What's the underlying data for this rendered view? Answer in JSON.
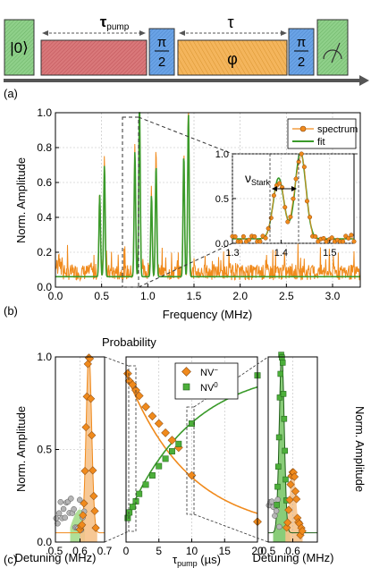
{
  "figure": {
    "panel_labels": {
      "a": "(a)",
      "b": "(b)",
      "c": "(c)"
    },
    "sequence": {
      "state_label": "|0⟩",
      "tau_pump_label": "τ",
      "tau_pump_sub": "pump",
      "pi2_label_top": "π",
      "pi2_label_bottom": "2",
      "tau_label": "τ",
      "phase_label": "φ",
      "colors": {
        "green": "#8fd08a",
        "red": "#d9787a",
        "blue": "#6aa3e6",
        "orange": "#f4b55c",
        "arrow": "#555555"
      }
    },
    "colors": {
      "orange": "#f08a1c",
      "green": "#3a9a2a",
      "grey": "#8c8c8c"
    }
  },
  "chart_data": [
    {
      "type": "line",
      "panel": "b",
      "xlabel": "Frequency (MHz)",
      "ylabel": "Norm. Amplitude",
      "xlim": [
        0.0,
        3.3
      ],
      "ylim": [
        0.0,
        1.0
      ],
      "xticks": [
        "0.0",
        "0.5",
        "1.0",
        "1.5",
        "2.0",
        "2.5",
        "3.0"
      ],
      "yticks": [
        "0.0",
        "0.2",
        "0.4",
        "0.6",
        "0.8",
        "1.0"
      ],
      "legend": {
        "placement": "top-right",
        "entries": [
          "spectrum",
          "fit"
        ]
      },
      "fit_peaks": [
        {
          "x": 0.48,
          "y": 0.47
        },
        {
          "x": 0.53,
          "y": 0.64
        },
        {
          "x": 0.86,
          "y": 0.72
        },
        {
          "x": 0.91,
          "y": 1.0
        },
        {
          "x": 1.04,
          "y": 0.47
        },
        {
          "x": 1.09,
          "y": 0.64
        },
        {
          "x": 1.39,
          "y": 0.7
        },
        {
          "x": 1.44,
          "y": 0.94
        }
      ],
      "inset": {
        "xlim": [
          1.3,
          1.55
        ],
        "ylim": [
          0.0,
          1.0
        ],
        "xticks": [
          "1.3",
          "1.4",
          "1.5"
        ],
        "yticks": [
          "0.0",
          "0.5",
          "1.0"
        ],
        "annotation": "ν",
        "annotation_sub": "Stark",
        "fit_peaks": [
          {
            "x": 1.395,
            "y": 0.68
          },
          {
            "x": 1.44,
            "y": 0.97
          }
        ]
      }
    },
    {
      "type": "scatter",
      "panel": "c-left",
      "xlabel": "Detuning (MHz)",
      "ylabel": "Norm. Amplitude",
      "xlim": [
        0.5,
        0.7
      ],
      "ylim": [
        0.0,
        1.0
      ],
      "xticks": [
        "0.5",
        "0.6",
        "0.7"
      ],
      "yticks": [
        "0.0",
        "0.5",
        "1.0"
      ]
    },
    {
      "type": "scatter",
      "panel": "c-middle",
      "title": "Probability",
      "xlabel": "τ",
      "xlabel_sub": "pump",
      "xlabel_unit": " (µs)",
      "xlim": [
        0,
        20
      ],
      "ylim": [
        0.0,
        1.0
      ],
      "xticks": [
        "0",
        "5",
        "10",
        "15",
        "20"
      ],
      "legend": {
        "placement": "top-right",
        "entries": [
          "NV",
          "NV"
        ],
        "superscripts": [
          "−",
          "0"
        ]
      },
      "series": [
        {
          "name": "NV−",
          "x": [
            0.25,
            0.5,
            1,
            1.5,
            2,
            3,
            4,
            5,
            6,
            7,
            8,
            10,
            20
          ],
          "y": [
            0.91,
            0.87,
            0.85,
            0.82,
            0.79,
            0.73,
            0.68,
            0.64,
            0.59,
            0.55,
            0.51,
            0.36,
            0.11
          ]
        },
        {
          "name": "NV0",
          "x": [
            0.25,
            0.5,
            1,
            1.5,
            2,
            3,
            4,
            5,
            6,
            7,
            8,
            10,
            20
          ],
          "y": [
            0.13,
            0.16,
            0.19,
            0.22,
            0.26,
            0.31,
            0.36,
            0.41,
            0.45,
            0.49,
            0.53,
            0.64,
            0.9
          ]
        }
      ]
    },
    {
      "type": "scatter",
      "panel": "c-right",
      "xlabel": "Detuning (MHz)",
      "ylabel": "Norm. Amplitude",
      "xlim": [
        0.5,
        0.7
      ],
      "ylim": [
        0.0,
        1.0
      ],
      "xticks": [
        "0.5",
        "0.6"
      ]
    }
  ]
}
